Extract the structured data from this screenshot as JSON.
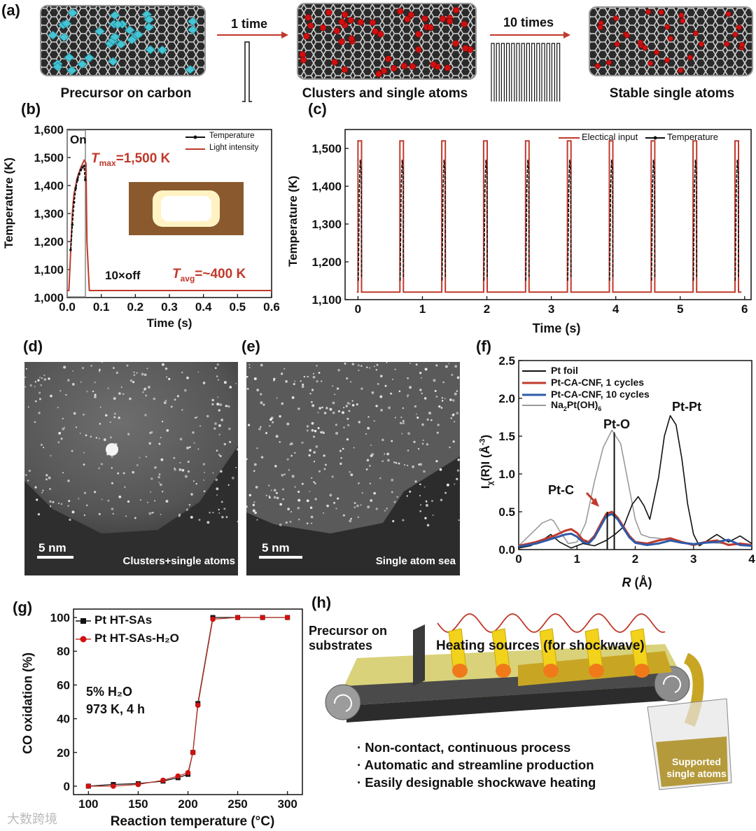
{
  "colors": {
    "red": "#c0392b",
    "black": "#111111",
    "blue": "#2e5aa8",
    "gray": "#9a9a9a",
    "atom_red": "#d01010",
    "cyan": "#46c4d4"
  },
  "panel_labels": {
    "a": "(a)",
    "b": "(b)",
    "c": "(c)",
    "d": "(d)",
    "e": "(e)",
    "f": "(f)",
    "g": "(g)",
    "h": "(h)"
  },
  "panel_a": {
    "captions": [
      "Precursor on carbon",
      "Clusters and single atoms",
      "Stable single atoms"
    ],
    "arrow1": "1 time",
    "arrow2": "10 times",
    "pulse_count_1": 1,
    "pulse_count_2": 10
  },
  "panel_b": {
    "ylabel": "Temperature (K)",
    "xlabel": "Time (s)",
    "on_label": "On",
    "off_label": "10×off",
    "tmax_label": "T",
    "tmax_sub": "max",
    "tmax_value": "=1,500 K",
    "tavg_label": "T",
    "tavg_sub": "avg",
    "tavg_value": "=~400 K",
    "legend": [
      "Temperature",
      "Light intensity"
    ]
  },
  "panel_c": {
    "ylabel": "Temperature (K)",
    "xlabel": "Time (s)",
    "legend": [
      "Electical input",
      "Temperature"
    ]
  },
  "panel_d": {
    "scale": "5 nm",
    "caption": "Clusters+single atoms"
  },
  "panel_e": {
    "scale": "5 nm",
    "caption": "Single atom sea"
  },
  "panel_f": {
    "annotations": [
      "Pt-Pt",
      "Pt-O",
      "Pt-C"
    ],
    "legend": [
      "Pt foil",
      "Pt-CA-CNF, 1 cycles",
      "Pt-CA-CNF, 10 cycles"
    ],
    "legend4_main": "Na",
    "legend4_sub1": "2",
    "legend4_mid": "Pt(OH)",
    "legend4_sub2": "6",
    "ylabel_prefix": "I",
    "ylabel_sub": "χ",
    "ylabel_mid": "(R)I (Å",
    "ylabel_sup": "-3",
    "ylabel_end": ")",
    "xlabel_main": "R",
    "xlabel_unit": " (Å)"
  },
  "panel_g": {
    "ylabel": "CO oxidation (%)",
    "xlabel": "Reaction temperature (°C)",
    "legend": [
      "Pt HT-SAs",
      "Pt HT-SAs-H₂O"
    ],
    "note1": "5% H₂O",
    "note2": "973 K, 4 h"
  },
  "panel_h": {
    "precursor": "Precursor on substrates",
    "heating": "Heating sources (for shockwave)",
    "bullets": [
      "· Non-contact, continuous process",
      "· Automatic and streamline production",
      "· Easily designable shockwave heating"
    ],
    "box": "Supported single atoms"
  },
  "watermark": "大数跨境",
  "chart_data": [
    {
      "panel": "b",
      "type": "line",
      "xlabel": "Time (s)",
      "ylabel": "Temperature (K)",
      "xlim": [
        0,
        0.6
      ],
      "ylim": [
        1000,
        1600
      ],
      "x_ticks": [
        "0.0",
        "0.1",
        "0.2",
        "0.3",
        "0.4",
        "0.5",
        "0.6"
      ],
      "y_ticks": [
        "1,000",
        "1,100",
        "1,200",
        "1,300",
        "1,400",
        "1,500",
        "1,600"
      ],
      "series": [
        {
          "name": "Temperature",
          "x": [
            0.01,
            0.015,
            0.02,
            0.025,
            0.03,
            0.035,
            0.04,
            0.045,
            0.05,
            0.053
          ],
          "values": [
            1170,
            1260,
            1340,
            1390,
            1420,
            1440,
            1455,
            1465,
            1470,
            1420
          ]
        },
        {
          "name": "Light intensity",
          "x": [
            0,
            0.005,
            0.01,
            0.015,
            0.02,
            0.03,
            0.04,
            0.05,
            0.055,
            0.058,
            0.065,
            0.6
          ],
          "values": [
            1025,
            1025,
            1160,
            1300,
            1370,
            1430,
            1465,
            1490,
            1480,
            1200,
            1025,
            1025
          ]
        }
      ]
    },
    {
      "panel": "c",
      "type": "line",
      "xlabel": "Time (s)",
      "ylabel": "Temperature (K)",
      "xlim": [
        -0.2,
        6.1
      ],
      "ylim": [
        1100,
        1550
      ],
      "x_ticks": [
        "0",
        "1",
        "2",
        "3",
        "4",
        "5",
        "6"
      ],
      "y_ticks": [
        "1,100",
        "1,200",
        "1,300",
        "1,400",
        "1,500"
      ],
      "pulse_starts": [
        0,
        0.65,
        1.3,
        1.95,
        2.6,
        3.25,
        3.9,
        4.55,
        5.2,
        5.85
      ],
      "pulse_width": 0.055,
      "high": 1520,
      "low": 1120,
      "series": [
        {
          "name": "Electical input",
          "values": [
            1120,
            1520
          ]
        },
        {
          "name": "Temperature",
          "values": [
            1150,
            1470
          ]
        }
      ]
    },
    {
      "panel": "f",
      "type": "line",
      "xlabel": "R (Å)",
      "ylabel": "Iχ(R)I (Å-3)",
      "xlim": [
        0,
        4
      ],
      "ylim": [
        0,
        2.5
      ],
      "x_ticks": [
        "0",
        "1",
        "2",
        "3",
        "4"
      ],
      "y_ticks": [
        "0.0",
        "0.5",
        "1.0",
        "1.5",
        "2.0",
        "2.5"
      ],
      "markers_x": [
        1.52,
        1.64
      ],
      "series": [
        {
          "name": "Pt foil",
          "x": [
            0,
            0.2,
            0.4,
            0.55,
            0.7,
            0.9,
            1.1,
            1.3,
            1.5,
            1.65,
            1.8,
            1.95,
            2.05,
            2.15,
            2.25,
            2.4,
            2.5,
            2.6,
            2.7,
            2.8,
            2.9,
            3.0,
            3.1,
            3.2,
            3.4,
            3.6,
            3.8,
            4.0
          ],
          "values": [
            0.02,
            0.05,
            0.12,
            0.2,
            0.1,
            0.02,
            0.08,
            0.05,
            0.12,
            0.2,
            0.3,
            0.6,
            0.7,
            0.58,
            0.4,
            0.95,
            1.5,
            1.77,
            1.65,
            1.2,
            0.6,
            0.2,
            0.05,
            0.1,
            0.2,
            0.1,
            0.18,
            0.08
          ]
        },
        {
          "name": "Pt-CA-CNF, 1 cycles",
          "x": [
            0,
            0.3,
            0.6,
            0.8,
            0.9,
            1.0,
            1.1,
            1.2,
            1.3,
            1.4,
            1.5,
            1.6,
            1.7,
            1.8,
            1.9,
            2.0,
            2.2,
            2.4,
            2.6,
            2.8,
            3.0,
            3.2,
            3.4,
            3.6,
            3.8,
            4.0
          ],
          "values": [
            0.05,
            0.1,
            0.18,
            0.25,
            0.27,
            0.22,
            0.13,
            0.1,
            0.18,
            0.33,
            0.47,
            0.5,
            0.42,
            0.3,
            0.18,
            0.1,
            0.08,
            0.12,
            0.15,
            0.1,
            0.06,
            0.1,
            0.12,
            0.06,
            0.08,
            0.06
          ]
        },
        {
          "name": "Pt-CA-CNF, 10 cycles",
          "x": [
            0,
            0.3,
            0.6,
            0.8,
            0.9,
            1.0,
            1.1,
            1.2,
            1.3,
            1.4,
            1.5,
            1.6,
            1.7,
            1.8,
            1.9,
            2.0,
            2.2,
            2.4,
            2.6,
            2.8,
            3.0,
            3.2,
            3.4,
            3.6,
            3.8,
            4.0
          ],
          "values": [
            0.04,
            0.08,
            0.15,
            0.2,
            0.21,
            0.17,
            0.1,
            0.08,
            0.16,
            0.3,
            0.44,
            0.47,
            0.4,
            0.28,
            0.16,
            0.09,
            0.06,
            0.08,
            0.12,
            0.09,
            0.07,
            0.09,
            0.1,
            0.13,
            0.06,
            0.05
          ]
        },
        {
          "name": "Na2Pt(OH)6",
          "x": [
            0,
            0.2,
            0.4,
            0.55,
            0.6,
            0.7,
            0.85,
            1.0,
            1.15,
            1.3,
            1.45,
            1.6,
            1.75,
            1.9,
            2.0,
            2.1,
            2.25,
            2.4,
            2.6,
            2.8,
            3.0,
            3.2,
            3.5,
            3.8,
            4.0
          ],
          "values": [
            0.05,
            0.2,
            0.35,
            0.4,
            0.38,
            0.25,
            0.08,
            0.1,
            0.35,
            0.9,
            1.35,
            1.58,
            1.4,
            0.8,
            0.4,
            0.2,
            0.16,
            0.15,
            0.12,
            0.1,
            0.08,
            0.1,
            0.08,
            0.06,
            0.05
          ]
        }
      ]
    },
    {
      "panel": "g",
      "type": "line",
      "xlabel": "Reaction temperature (°C)",
      "ylabel": "CO oxidation (%)",
      "xlim": [
        85,
        315
      ],
      "ylim": [
        -5,
        105
      ],
      "x_ticks": [
        "100",
        "150",
        "200",
        "250",
        "300"
      ],
      "y_ticks": [
        "0",
        "20",
        "40",
        "60",
        "80",
        "100"
      ],
      "series": [
        {
          "name": "Pt HT-SAs",
          "x": [
            100,
            125,
            150,
            175,
            190,
            200,
            205,
            210,
            225,
            250,
            275,
            300
          ],
          "values": [
            0,
            1,
            1.5,
            3,
            5,
            7,
            20,
            49,
            100,
            100,
            100,
            100
          ]
        },
        {
          "name": "Pt HT-SAs-H₂O",
          "x": [
            100,
            125,
            150,
            175,
            190,
            200,
            205,
            210,
            225,
            250,
            275,
            300
          ],
          "values": [
            0,
            0,
            1,
            3.5,
            6,
            8,
            20,
            48,
            99,
            100,
            100,
            100
          ]
        }
      ]
    }
  ]
}
